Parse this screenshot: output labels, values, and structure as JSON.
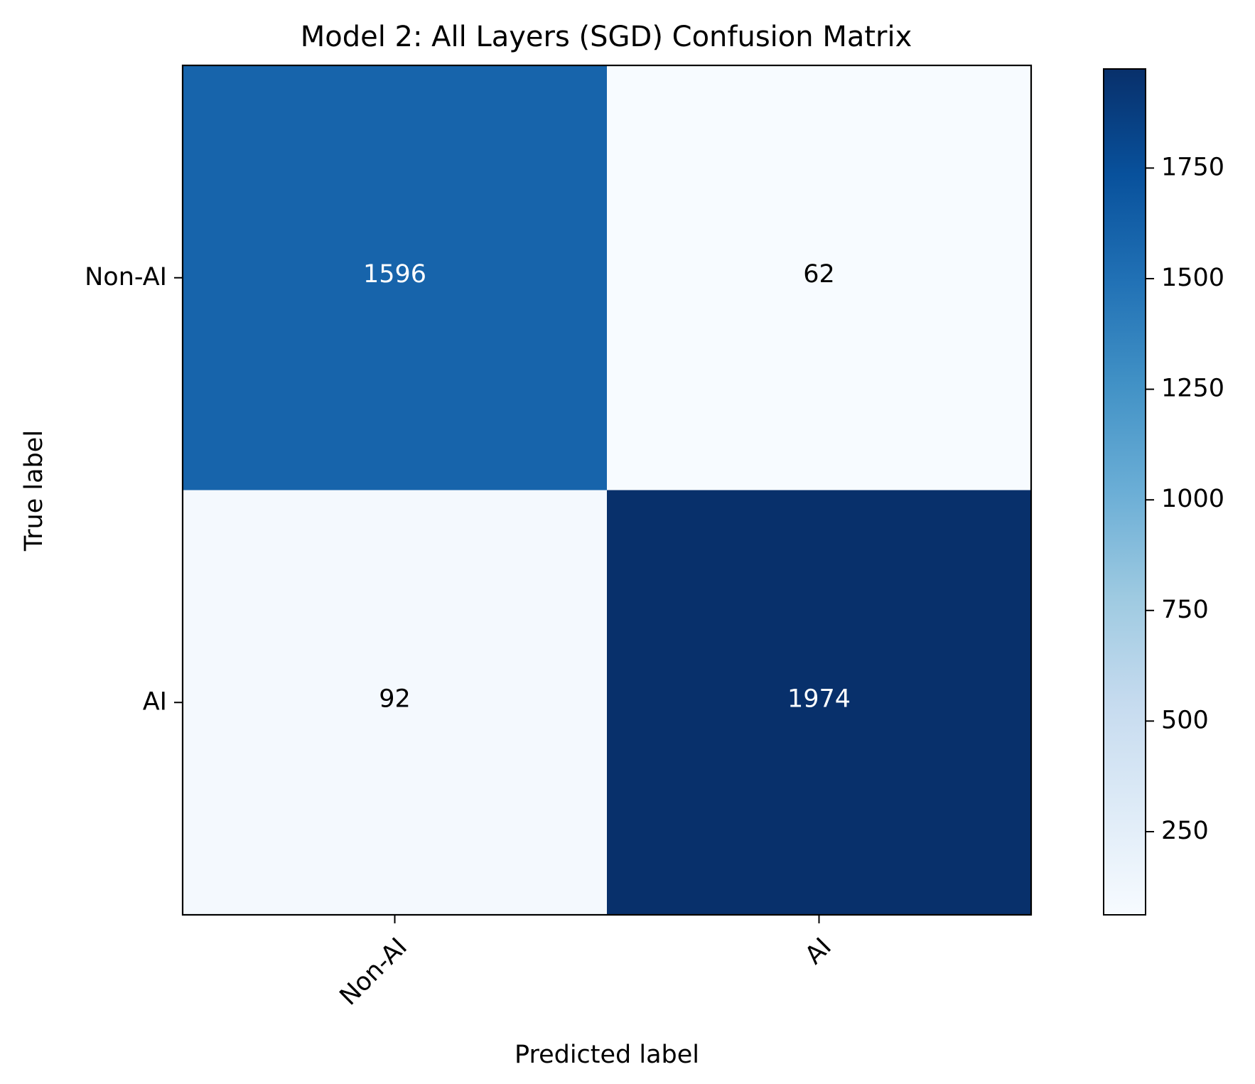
{
  "chart_data": {
    "type": "heatmap",
    "title": "Model 2: All Layers (SGD) Confusion Matrix",
    "xlabel": "Predicted label",
    "ylabel": "True label",
    "x_categories": [
      "Non-AI",
      "AI"
    ],
    "y_categories": [
      "Non-AI",
      "AI"
    ],
    "values": [
      [
        1596,
        62
      ],
      [
        92,
        1974
      ]
    ],
    "colormap": "Blues",
    "color_range": [
      62,
      1974
    ],
    "colorbar_ticks": [
      250,
      500,
      750,
      1000,
      1250,
      1500,
      1750
    ],
    "grid": false
  }
}
